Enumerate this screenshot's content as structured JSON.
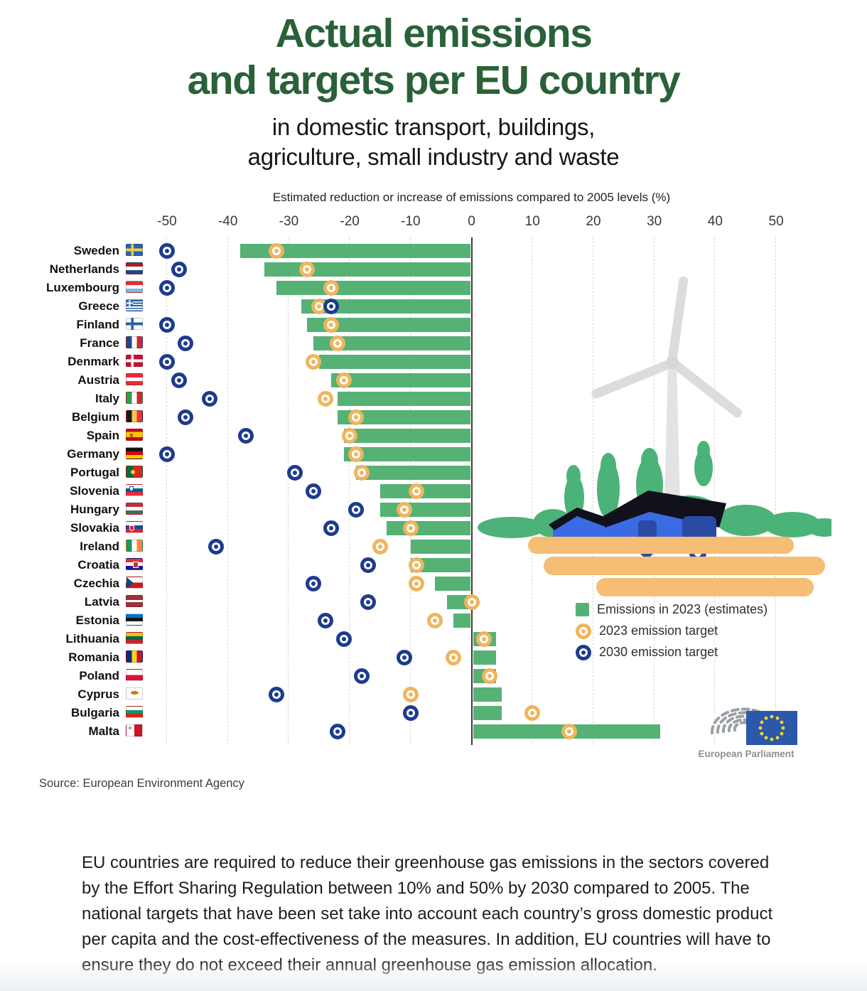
{
  "header": {
    "title_line1": "Actual emissions",
    "title_line2": "and targets per EU country",
    "subtitle_line1": "in domestic transport, buildings,",
    "subtitle_line2": "agriculture, small industry and waste"
  },
  "chart_data": {
    "type": "bar",
    "orientation": "horizontal",
    "axis_title": "Estimated reduction or increase of emissions compared to 2005 levels (%)",
    "xlim": [
      -50,
      50
    ],
    "x_ticks": [
      -50,
      -40,
      -30,
      -20,
      -10,
      0,
      10,
      20,
      30,
      40,
      50
    ],
    "grid": "vertical-dashed",
    "legend_position": "right-middle",
    "legend": [
      {
        "label": "Emissions in 2023 (estimates)",
        "swatch": "bar",
        "color": "#56b175"
      },
      {
        "label": "2023 emission target",
        "swatch": "ring",
        "color": "#efb55e"
      },
      {
        "label": "2030 emission target",
        "swatch": "ring",
        "color": "#1d3b8e"
      }
    ],
    "series_meta": {
      "bar": "emissions_2023_pct_vs_2005",
      "yellow_ring": "target_2023_pct",
      "blue_ring": "target_2030_pct"
    },
    "rows": [
      {
        "country": "Sweden",
        "flag": "se",
        "emissions_2023": -38,
        "target_2023": -32,
        "target_2030": -50
      },
      {
        "country": "Netherlands",
        "flag": "nl",
        "emissions_2023": -34,
        "target_2023": -27,
        "target_2030": -48
      },
      {
        "country": "Luxembourg",
        "flag": "lu",
        "emissions_2023": -32,
        "target_2023": -23,
        "target_2030": -50
      },
      {
        "country": "Greece",
        "flag": "gr",
        "emissions_2023": -28,
        "target_2023": -25,
        "target_2030": -23
      },
      {
        "country": "Finland",
        "flag": "fi",
        "emissions_2023": -27,
        "target_2023": -23,
        "target_2030": -50
      },
      {
        "country": "France",
        "flag": "fr",
        "emissions_2023": -26,
        "target_2023": -22,
        "target_2030": -47
      },
      {
        "country": "Denmark",
        "flag": "dk",
        "emissions_2023": -25,
        "target_2023": -26,
        "target_2030": -50
      },
      {
        "country": "Austria",
        "flag": "at",
        "emissions_2023": -23,
        "target_2023": -21,
        "target_2030": -48
      },
      {
        "country": "Italy",
        "flag": "it",
        "emissions_2023": -22,
        "target_2023": -24,
        "target_2030": -43
      },
      {
        "country": "Belgium",
        "flag": "be",
        "emissions_2023": -22,
        "target_2023": -19,
        "target_2030": -47
      },
      {
        "country": "Spain",
        "flag": "es",
        "emissions_2023": -21,
        "target_2023": -20,
        "target_2030": -37
      },
      {
        "country": "Germany",
        "flag": "de",
        "emissions_2023": -21,
        "target_2023": -19,
        "target_2030": -50
      },
      {
        "country": "Portugal",
        "flag": "pt",
        "emissions_2023": -19,
        "target_2023": -18,
        "target_2030": -29
      },
      {
        "country": "Slovenia",
        "flag": "si",
        "emissions_2023": -15,
        "target_2023": -9,
        "target_2030": -26
      },
      {
        "country": "Hungary",
        "flag": "hu",
        "emissions_2023": -15,
        "target_2023": -11,
        "target_2030": -19
      },
      {
        "country": "Slovakia",
        "flag": "sk",
        "emissions_2023": -14,
        "target_2023": -10,
        "target_2030": -23
      },
      {
        "country": "Ireland",
        "flag": "ie",
        "emissions_2023": -10,
        "target_2023": -15,
        "target_2030": -42
      },
      {
        "country": "Croatia",
        "flag": "hr",
        "emissions_2023": -10,
        "target_2023": -9,
        "target_2030": -17
      },
      {
        "country": "Czechia",
        "flag": "cz",
        "emissions_2023": -6,
        "target_2023": -9,
        "target_2030": -26
      },
      {
        "country": "Latvia",
        "flag": "lv",
        "emissions_2023": -4,
        "target_2023": 0,
        "target_2030": -17
      },
      {
        "country": "Estonia",
        "flag": "ee",
        "emissions_2023": -3,
        "target_2023": -6,
        "target_2030": -24
      },
      {
        "country": "Lithuania",
        "flag": "lt",
        "emissions_2023": 4,
        "target_2023": 2,
        "target_2030": -21
      },
      {
        "country": "Romania",
        "flag": "ro",
        "emissions_2023": 4,
        "target_2023": -3,
        "target_2030": -11
      },
      {
        "country": "Poland",
        "flag": "pl",
        "emissions_2023": 4,
        "target_2023": 3,
        "target_2030": -18
      },
      {
        "country": "Cyprus",
        "flag": "cy",
        "emissions_2023": 5,
        "target_2023": -10,
        "target_2030": -32
      },
      {
        "country": "Bulgaria",
        "flag": "bg",
        "emissions_2023": 5,
        "target_2023": 10,
        "target_2030": -10
      },
      {
        "country": "Malta",
        "flag": "mt",
        "emissions_2023": 31,
        "target_2023": 16,
        "target_2030": -22
      }
    ],
    "colors": {
      "bar_green": "#56b175",
      "target_2023_yellow": "#efb55e",
      "target_2030_blue": "#1d3b8e",
      "title_green": "#2a6138"
    }
  },
  "source": "Source: European Environment Agency",
  "logo_caption": "European Parliament",
  "footer_paragraph": "EU countries are required to reduce their greenhouse gas emissions in the sectors covered by the Effort Sharing Regulation between 10% and 50% by 2030 compared to 2005. The national targets that have been set take into account each country’s gross domestic product per capita and the cost-effectiveness of the measures. In addition, EU countries will have to ensure they do not exceed their annual greenhouse gas emission allocation."
}
